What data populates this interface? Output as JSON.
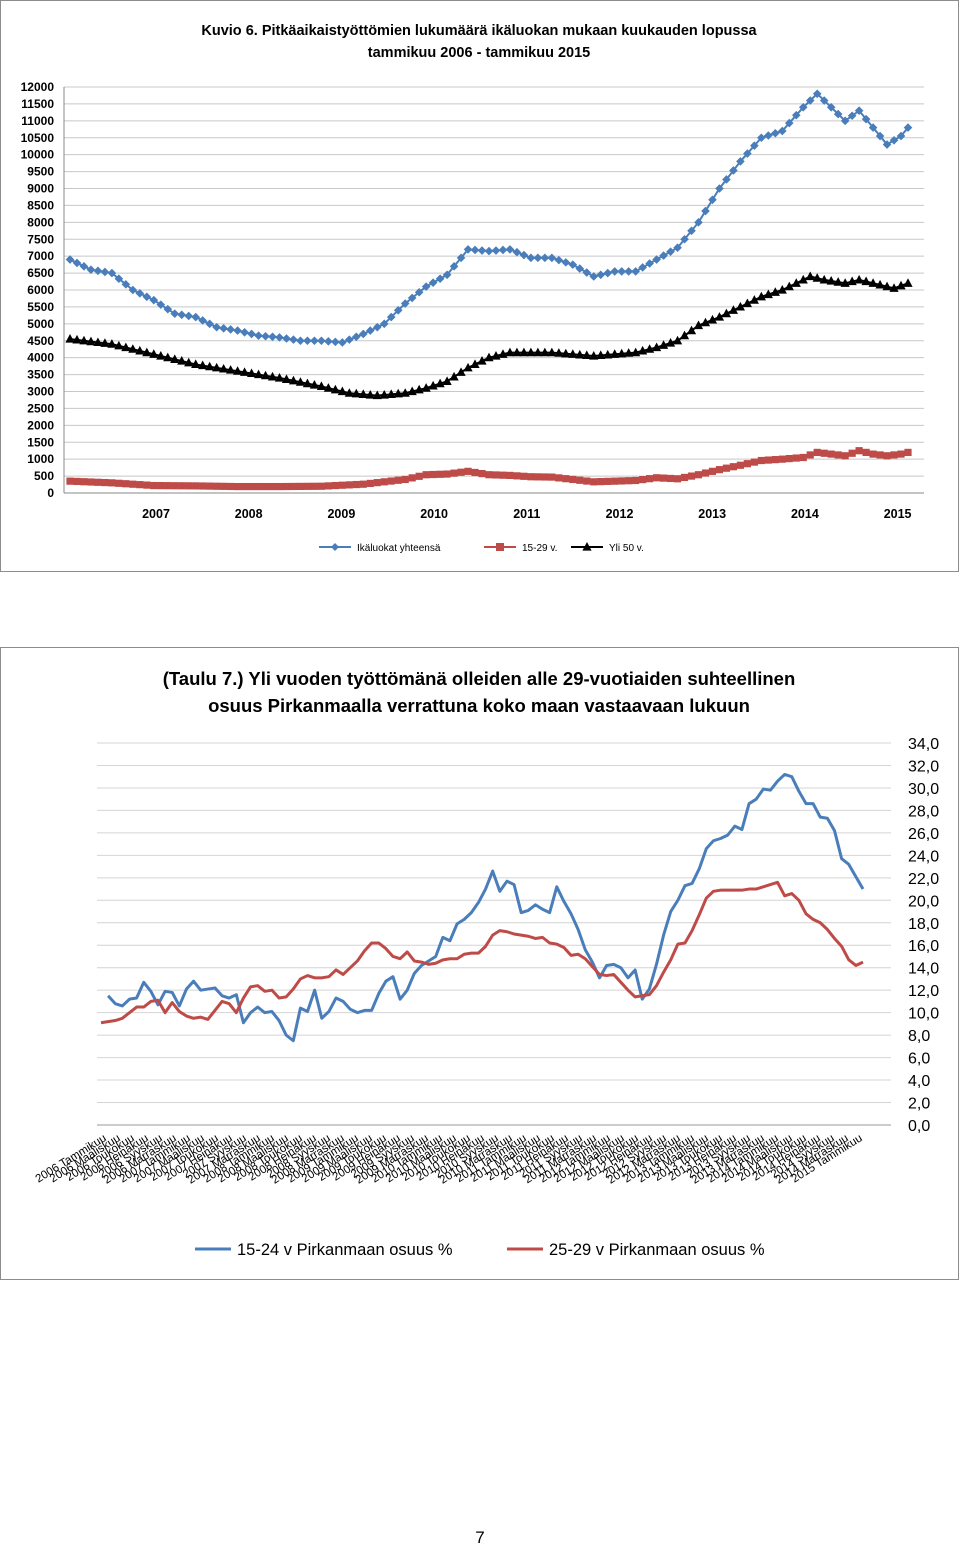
{
  "page_number": "7",
  "chart_data": [
    {
      "type": "line",
      "title": "Kuvio 6. Pitkäaikaistyöttömien lukumäärä ikäluokan mukaan kuukauden lopussa",
      "subtitle": "tammikuu 2006 - tammikuu 2015",
      "ylim": [
        0,
        12000
      ],
      "y_ticks": [
        "12000",
        "11500",
        "11000",
        "10500",
        "10000",
        "9500",
        "9000",
        "8500",
        "8000",
        "7500",
        "7000",
        "6500",
        "6000",
        "5500",
        "5000",
        "4500",
        "4000",
        "3500",
        "3000",
        "2500",
        "2000",
        "1500",
        "1000",
        "500",
        "0"
      ],
      "x_tick_labels": [
        "2007",
        "2008",
        "2009",
        "2010",
        "2011",
        "2012",
        "2013",
        "2014",
        "2015"
      ],
      "grid": true,
      "legend_position": "bottom",
      "x_start": "2006-01",
      "x_end": "2015-01",
      "series": [
        {
          "name": "Ikäluokat yhteensä",
          "color": "#4a7ebb",
          "marker": "diamond",
          "anchors": [
            [
              0,
              6900
            ],
            [
              3,
              6600
            ],
            [
              6,
              6500
            ],
            [
              9,
              6000
            ],
            [
              12,
              5700
            ],
            [
              15,
              5300
            ],
            [
              18,
              5200
            ],
            [
              21,
              4900
            ],
            [
              24,
              4800
            ],
            [
              27,
              4650
            ],
            [
              30,
              4600
            ],
            [
              33,
              4500
            ],
            [
              36,
              4500
            ],
            [
              39,
              4450
            ],
            [
              42,
              4700
            ],
            [
              45,
              5000
            ],
            [
              48,
              5600
            ],
            [
              51,
              6100
            ],
            [
              54,
              6450
            ],
            [
              57,
              7200
            ],
            [
              60,
              7150
            ],
            [
              63,
              7200
            ],
            [
              66,
              6950
            ],
            [
              69,
              6950
            ],
            [
              72,
              6750
            ],
            [
              75,
              6400
            ],
            [
              78,
              6550
            ],
            [
              81,
              6550
            ],
            [
              84,
              6900
            ],
            [
              87,
              7250
            ],
            [
              90,
              8000
            ],
            [
              93,
              9000
            ],
            [
              96,
              9800
            ],
            [
              99,
              10500
            ],
            [
              102,
              10700
            ],
            [
              105,
              11400
            ],
            [
              107,
              11800
            ],
            [
              108,
              11600
            ],
            [
              111,
              11000
            ],
            [
              113,
              11300
            ],
            [
              115,
              10800
            ],
            [
              117,
              10300
            ],
            [
              119,
              10550
            ],
            [
              120,
              10800
            ]
          ]
        },
        {
          "name": "15-29 v.",
          "color": "#be4b48",
          "marker": "square",
          "anchors": [
            [
              0,
              350
            ],
            [
              6,
              300
            ],
            [
              12,
              220
            ],
            [
              18,
              210
            ],
            [
              24,
              190
            ],
            [
              30,
              190
            ],
            [
              36,
              200
            ],
            [
              42,
              260
            ],
            [
              48,
              400
            ],
            [
              51,
              540
            ],
            [
              54,
              560
            ],
            [
              57,
              640
            ],
            [
              60,
              540
            ],
            [
              63,
              520
            ],
            [
              66,
              480
            ],
            [
              69,
              470
            ],
            [
              72,
              400
            ],
            [
              75,
              330
            ],
            [
              78,
              350
            ],
            [
              81,
              370
            ],
            [
              84,
              450
            ],
            [
              87,
              420
            ],
            [
              90,
              540
            ],
            [
              93,
              690
            ],
            [
              96,
              820
            ],
            [
              99,
              960
            ],
            [
              102,
              1000
            ],
            [
              105,
              1050
            ],
            [
              107,
              1200
            ],
            [
              109,
              1150
            ],
            [
              111,
              1100
            ],
            [
              113,
              1250
            ],
            [
              115,
              1150
            ],
            [
              117,
              1100
            ],
            [
              119,
              1150
            ],
            [
              120,
              1200
            ]
          ]
        },
        {
          "name": "Yli 50 v.",
          "color": "#000000",
          "marker": "triangle",
          "anchors": [
            [
              0,
              4550
            ],
            [
              6,
              4400
            ],
            [
              12,
              4100
            ],
            [
              18,
              3800
            ],
            [
              24,
              3600
            ],
            [
              30,
              3400
            ],
            [
              36,
              3150
            ],
            [
              40,
              2950
            ],
            [
              44,
              2880
            ],
            [
              48,
              2950
            ],
            [
              51,
              3100
            ],
            [
              54,
              3300
            ],
            [
              57,
              3700
            ],
            [
              60,
              4000
            ],
            [
              63,
              4150
            ],
            [
              66,
              4150
            ],
            [
              69,
              4150
            ],
            [
              72,
              4100
            ],
            [
              75,
              4050
            ],
            [
              78,
              4100
            ],
            [
              81,
              4150
            ],
            [
              84,
              4300
            ],
            [
              87,
              4500
            ],
            [
              90,
              4950
            ],
            [
              93,
              5200
            ],
            [
              96,
              5500
            ],
            [
              99,
              5800
            ],
            [
              102,
              6000
            ],
            [
              105,
              6300
            ],
            [
              106,
              6400
            ],
            [
              108,
              6300
            ],
            [
              111,
              6200
            ],
            [
              113,
              6300
            ],
            [
              116,
              6150
            ],
            [
              118,
              6050
            ],
            [
              120,
              6200
            ]
          ]
        }
      ]
    },
    {
      "type": "line",
      "title": "(Taulu 7.) Yli vuoden työttömänä olleiden alle 29-vuotiaiden suhteellinen",
      "subtitle": "osuus  Pirkanmaalla  verrattuna koko maan vastaavaan lukuun",
      "ylim": [
        0,
        34
      ],
      "y_ticks": [
        "34,0",
        "32,0",
        "30,0",
        "28,0",
        "26,0",
        "24,0",
        "22,0",
        "20,0",
        "18,0",
        "16,0",
        "14,0",
        "12,0",
        "10,0",
        "8,0",
        "6,0",
        "4,0",
        "2,0",
        "0,0"
      ],
      "x_tick_labels": [
        "2006 Tammikuu",
        "2006 Maaliskuu",
        "2006 Toukokuu",
        "2006 Heinäkuu",
        "2006 Syyskuu",
        "2006 Marraskuu",
        "2007 Tammikuu",
        "2007 Maaliskuu",
        "2007 Toukokuu",
        "2007 Heinäkuu",
        "2007 Syyskuu",
        "2007 Marraskuu",
        "2008 Tammikuu",
        "2008 Maaliskuu",
        "2008 Toukokuu",
        "2008 Heinäkuu",
        "2008 Syyskuu",
        "2008 Marraskuu",
        "2009 Tammikuu",
        "2009 Maaliskuu",
        "2009 Toukokuu",
        "2009 Heinäkuu",
        "2009 Syyskuu",
        "2009 Marraskuu",
        "2010 Tammikuu",
        "2010 Maaliskuu",
        "2010 Toukokuu",
        "2010 Heinäkuu",
        "2010 Syyskuu",
        "2010 Marraskuu",
        "2011 Tammikuu",
        "2011 Maaliskuu",
        "2011 Toukokuu",
        "2011 Heinäkuu",
        "2011 Syyskuu",
        "2011 Marraskuu",
        "2012 Tammikuu",
        "2012 Maaliskuu",
        "2012 Toukokuu",
        "2012 Heinäkuu",
        "2012 Syyskuu",
        "2012 Marraskuu",
        "2013 Tammikuu",
        "2013 Maaliskuu",
        "2013 Toukokuu",
        "2013 Heinäkuu",
        "2013 Syyskuu",
        "2013 Marraskuu",
        "2014 Tammikuu",
        "2014 Maaliskuu",
        "2014 Toukokuu",
        "2014 Heinäkuu",
        "2014 Syyskuu",
        "2014 Marraskuu",
        "2015 Tammikuu"
      ],
      "grid": true,
      "legend_position": "bottom",
      "series": [
        {
          "name": "15-24 v  Pirkanmaan osuus %",
          "color": "#4a7ebb",
          "values": [
            null,
            11.5,
            10.8,
            10.6,
            11.2,
            11.3,
            12.7,
            11.9,
            10.7,
            11.9,
            11.8,
            10.6,
            12.1,
            12.8,
            12.0,
            12.1,
            12.2,
            11.5,
            11.3,
            11.6,
            9.1,
            10.0,
            10.5,
            10.0,
            10.1,
            9.3,
            8.0,
            7.5,
            10.4,
            10.1,
            12.0,
            9.5,
            10.1,
            11.3,
            11.0,
            10.3,
            10.0,
            10.2,
            10.2,
            11.7,
            12.8,
            13.2,
            11.2,
            12.0,
            13.5,
            14.2,
            14.6,
            15.0,
            16.7,
            16.4,
            17.9,
            18.3,
            18.9,
            19.8,
            21.0,
            22.6,
            20.8,
            21.7,
            21.4,
            18.9,
            19.1,
            19.6,
            19.2,
            18.9,
            21.2,
            19.9,
            18.8,
            17.4,
            15.6,
            14.5,
            13.1,
            14.2,
            14.3,
            14.0,
            13.1,
            13.8,
            11.2,
            12.1,
            14.3,
            16.9,
            19.0,
            20.0,
            21.3,
            21.5,
            22.8,
            24.6,
            25.3,
            25.5,
            25.8,
            26.6,
            26.3,
            28.6,
            29.0,
            29.9,
            29.8,
            30.6,
            31.2,
            31.0,
            29.7,
            28.6,
            28.6,
            27.4,
            27.3,
            26.2,
            23.7,
            23.2,
            22.1,
            21.0
          ]
        },
        {
          "name": "25-29 v Pirkanmaan osuus %",
          "color": "#be4b48",
          "values": [
            9.1,
            9.2,
            9.3,
            9.5,
            10.0,
            10.5,
            10.5,
            11.0,
            11.1,
            10.0,
            10.9,
            10.1,
            9.7,
            9.5,
            9.6,
            9.4,
            10.2,
            11.0,
            10.8,
            10.0,
            11.3,
            12.3,
            12.4,
            11.9,
            12.0,
            11.3,
            11.4,
            12.1,
            13.0,
            13.3,
            13.1,
            13.1,
            13.2,
            13.8,
            13.4,
            14.0,
            14.6,
            15.5,
            16.2,
            16.2,
            15.7,
            15.0,
            14.8,
            15.4,
            14.6,
            14.5,
            14.3,
            14.4,
            14.7,
            14.8,
            14.8,
            15.2,
            15.3,
            15.3,
            15.9,
            16.9,
            17.3,
            17.2,
            17.0,
            16.9,
            16.8,
            16.6,
            16.7,
            16.2,
            16.1,
            15.8,
            15.1,
            15.2,
            14.8,
            14.1,
            13.4,
            13.3,
            13.4,
            12.7,
            12.0,
            11.4,
            11.5,
            11.6,
            12.4,
            13.6,
            14.7,
            16.1,
            16.2,
            17.3,
            18.7,
            20.2,
            20.8,
            20.9,
            20.9,
            20.9,
            20.9,
            21.0,
            21.0,
            21.2,
            21.4,
            21.6,
            20.4,
            20.6,
            20.0,
            18.8,
            18.3,
            18.0,
            17.4,
            16.6,
            15.9,
            14.7,
            14.2,
            14.5
          ]
        }
      ]
    }
  ]
}
